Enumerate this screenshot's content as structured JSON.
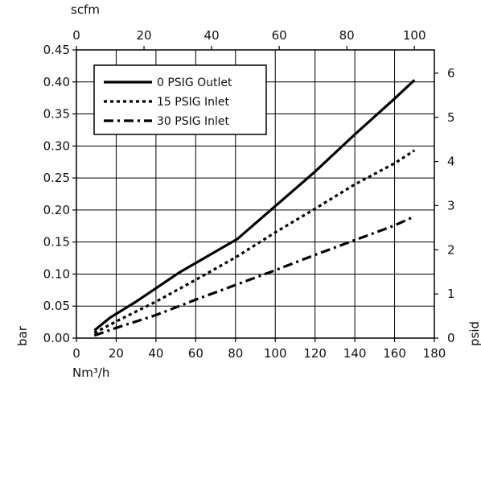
{
  "chart_data": {
    "type": "line",
    "x": {
      "label": "Nm³/h",
      "lim": [
        0,
        180
      ],
      "ticks": [
        0,
        20,
        40,
        60,
        80,
        100,
        120,
        140,
        160,
        180
      ]
    },
    "x_top": {
      "label": "scfm",
      "lim": [
        0,
        105.9
      ],
      "ticks": [
        0,
        20,
        40,
        60,
        80,
        100
      ]
    },
    "y": {
      "label": "bar",
      "lim": [
        0,
        0.45
      ],
      "ticks": [
        "0.00",
        "0.05",
        "0.10",
        "0.15",
        "0.20",
        "0.25",
        "0.30",
        "0.35",
        "0.40",
        "0.45"
      ]
    },
    "y_right": {
      "label": "psid",
      "lim": [
        0,
        6.527
      ],
      "ticks": [
        0,
        1,
        2,
        3,
        4,
        5,
        6
      ]
    },
    "grid": true,
    "legend_position": "top-left",
    "series": [
      {
        "name": "0 PSIG Outlet",
        "style": "solid",
        "points": [
          [
            9,
            0.012
          ],
          [
            17,
            0.032
          ],
          [
            30,
            0.057
          ],
          [
            52,
            0.103
          ],
          [
            81,
            0.155
          ],
          [
            100,
            0.206
          ],
          [
            120,
            0.26
          ],
          [
            140,
            0.318
          ],
          [
            160,
            0.374
          ],
          [
            170,
            0.403
          ]
        ]
      },
      {
        "name": "15 PSIG Inlet",
        "style": "dotted",
        "points": [
          [
            9,
            0.008
          ],
          [
            20,
            0.026
          ],
          [
            40,
            0.057
          ],
          [
            60,
            0.091
          ],
          [
            80,
            0.126
          ],
          [
            100,
            0.165
          ],
          [
            120,
            0.202
          ],
          [
            140,
            0.24
          ],
          [
            160,
            0.273
          ],
          [
            170,
            0.293
          ]
        ]
      },
      {
        "name": "30 PSIG Inlet",
        "style": "dashdot",
        "points": [
          [
            9,
            0.004
          ],
          [
            20,
            0.016
          ],
          [
            40,
            0.036
          ],
          [
            60,
            0.06
          ],
          [
            80,
            0.083
          ],
          [
            100,
            0.106
          ],
          [
            120,
            0.13
          ],
          [
            140,
            0.153
          ],
          [
            160,
            0.176
          ],
          [
            170,
            0.19
          ]
        ]
      }
    ],
    "color": "#000000"
  }
}
